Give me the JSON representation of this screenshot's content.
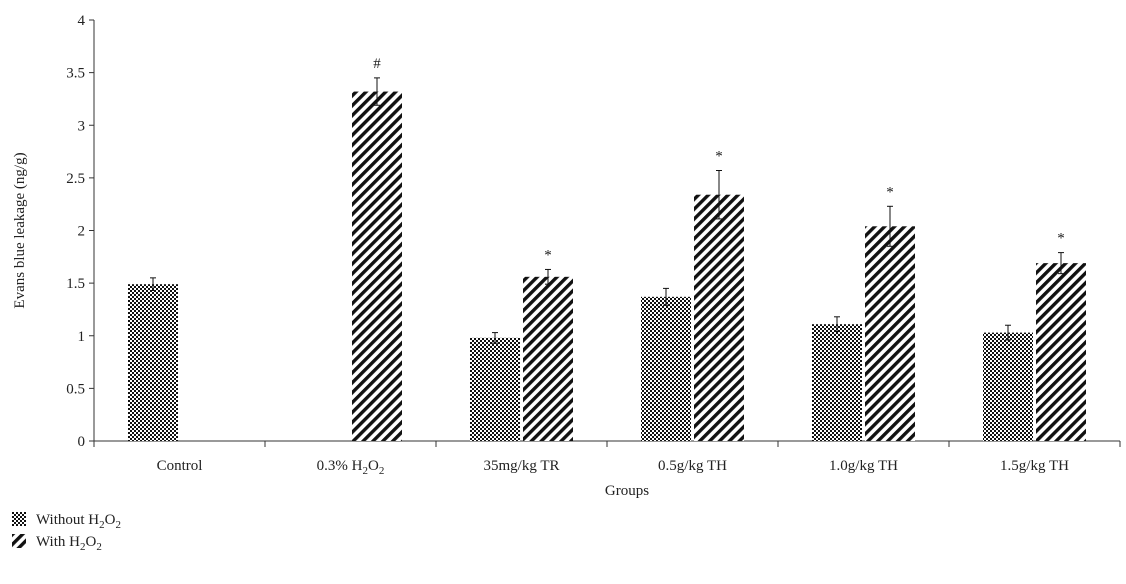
{
  "chart_data": {
    "type": "bar",
    "categories": [
      {
        "base": "Control",
        "sub": "",
        "mid": "",
        "sub2": "",
        "tail": ""
      },
      {
        "base": "0.3% H",
        "sub": "2",
        "mid": "O",
        "sub2": "2",
        "tail": ""
      },
      {
        "base": "35mg/kg TR",
        "sub": "",
        "mid": "",
        "sub2": "",
        "tail": ""
      },
      {
        "base": "0.5g/kg TH",
        "sub": "",
        "mid": "",
        "sub2": "",
        "tail": ""
      },
      {
        "base": "1.0g/kg TH",
        "sub": "",
        "mid": "",
        "sub2": "",
        "tail": ""
      },
      {
        "base": "1.5g/kg TH",
        "sub": "",
        "mid": "",
        "sub2": "",
        "tail": ""
      }
    ],
    "series": [
      {
        "name": {
          "base": "Without H",
          "sub": "2",
          "mid": "O",
          "sub2": "2"
        },
        "pattern": "checker",
        "values": [
          1.49,
          0,
          0.98,
          1.37,
          1.11,
          1.03
        ],
        "errors": [
          0.06,
          0,
          0.05,
          0.08,
          0.07,
          0.07
        ],
        "labels": [
          "",
          "",
          "",
          "",
          "",
          ""
        ]
      },
      {
        "name": {
          "base": "With H",
          "sub": "2",
          "mid": "O",
          "sub2": "2"
        },
        "pattern": "diagonal",
        "values": [
          0,
          3.32,
          1.56,
          2.34,
          2.04,
          1.69
        ],
        "errors": [
          0,
          0.13,
          0.07,
          0.23,
          0.19,
          0.1
        ],
        "labels": [
          "",
          "#",
          "*",
          "*",
          "*",
          "*"
        ]
      }
    ],
    "xlabel": "Groups",
    "ylabel": "Evans blue leakage (ng/g)",
    "ylim": [
      0,
      4
    ],
    "yticks": [
      "0",
      "0.5",
      "1",
      "1.5",
      "2",
      "2.5",
      "3",
      "3.5",
      "4"
    ],
    "grid": false,
    "legend_position": "bottom-left"
  }
}
